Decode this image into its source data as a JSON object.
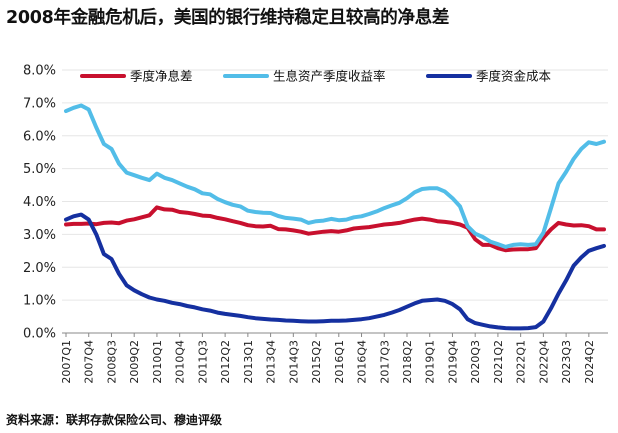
{
  "chart_data": {
    "type": "line",
    "title": "2008年金融危机后，美国的银行维持稳定且较高的净息差",
    "source": "资料来源：联邦存款保险公司、穆迪评级",
    "ylim": [
      0.0,
      8.0
    ],
    "y_ticks": [
      "0.0%",
      "1.0%",
      "2.0%",
      "3.0%",
      "4.0%",
      "5.0%",
      "6.0%",
      "7.0%",
      "8.0%"
    ],
    "x_ticks": [
      "2007Q1",
      "2007Q4",
      "2008Q3",
      "2009Q2",
      "2010Q1",
      "2010Q4",
      "2011Q3",
      "2012Q2",
      "2013Q1",
      "2013Q4",
      "2014Q3",
      "2015Q2",
      "2016Q1",
      "2016Q4",
      "2017Q3",
      "2018Q2",
      "2019Q1",
      "2019Q4",
      "2020Q3",
      "2021Q2",
      "2022Q1",
      "2022Q4",
      "2023Q3",
      "2024Q2"
    ],
    "legend_position": "top",
    "series": [
      {
        "name": "季度净息差",
        "color": "#c8102e",
        "values": [
          3.3,
          3.32,
          3.32,
          3.33,
          3.31,
          3.35,
          3.36,
          3.34,
          3.42,
          3.46,
          3.52,
          3.58,
          3.82,
          3.76,
          3.75,
          3.68,
          3.66,
          3.62,
          3.57,
          3.56,
          3.5,
          3.46,
          3.4,
          3.35,
          3.28,
          3.25,
          3.24,
          3.26,
          3.16,
          3.15,
          3.12,
          3.08,
          3.02,
          3.05,
          3.08,
          3.1,
          3.08,
          3.12,
          3.18,
          3.2,
          3.22,
          3.26,
          3.3,
          3.32,
          3.35,
          3.4,
          3.45,
          3.48,
          3.45,
          3.4,
          3.38,
          3.35,
          3.3,
          3.2,
          2.85,
          2.68,
          2.68,
          2.58,
          2.52,
          2.54,
          2.55,
          2.55,
          2.58,
          2.9,
          3.15,
          3.35,
          3.3,
          3.27,
          3.28,
          3.25,
          3.15,
          3.15
        ]
      },
      {
        "name": "生息资产季度收益率",
        "color": "#52bde8",
        "values": [
          6.75,
          6.85,
          6.92,
          6.8,
          6.25,
          5.75,
          5.6,
          5.15,
          4.88,
          4.8,
          4.72,
          4.65,
          4.85,
          4.72,
          4.65,
          4.55,
          4.45,
          4.37,
          4.25,
          4.22,
          4.08,
          3.98,
          3.9,
          3.85,
          3.72,
          3.68,
          3.66,
          3.65,
          3.56,
          3.5,
          3.48,
          3.45,
          3.35,
          3.4,
          3.42,
          3.47,
          3.43,
          3.45,
          3.52,
          3.55,
          3.62,
          3.7,
          3.8,
          3.88,
          3.96,
          4.1,
          4.28,
          4.38,
          4.4,
          4.4,
          4.3,
          4.1,
          3.85,
          3.25,
          3.02,
          2.92,
          2.78,
          2.7,
          2.62,
          2.68,
          2.7,
          2.68,
          2.7,
          3.05,
          3.8,
          4.55,
          4.9,
          5.3,
          5.6,
          5.8,
          5.75,
          5.82
        ]
      },
      {
        "name": "季度资金成本",
        "color": "#1530a0",
        "values": [
          3.45,
          3.55,
          3.6,
          3.45,
          3.0,
          2.4,
          2.25,
          1.8,
          1.45,
          1.3,
          1.18,
          1.08,
          1.02,
          0.98,
          0.92,
          0.88,
          0.82,
          0.78,
          0.72,
          0.68,
          0.62,
          0.58,
          0.55,
          0.52,
          0.48,
          0.45,
          0.43,
          0.41,
          0.4,
          0.38,
          0.37,
          0.36,
          0.35,
          0.35,
          0.36,
          0.37,
          0.37,
          0.38,
          0.4,
          0.42,
          0.45,
          0.5,
          0.55,
          0.62,
          0.7,
          0.8,
          0.9,
          0.98,
          1.0,
          1.02,
          0.98,
          0.88,
          0.72,
          0.42,
          0.3,
          0.25,
          0.2,
          0.17,
          0.15,
          0.14,
          0.14,
          0.15,
          0.18,
          0.35,
          0.75,
          1.2,
          1.6,
          2.05,
          2.3,
          2.5,
          2.58,
          2.65
        ]
      }
    ]
  }
}
